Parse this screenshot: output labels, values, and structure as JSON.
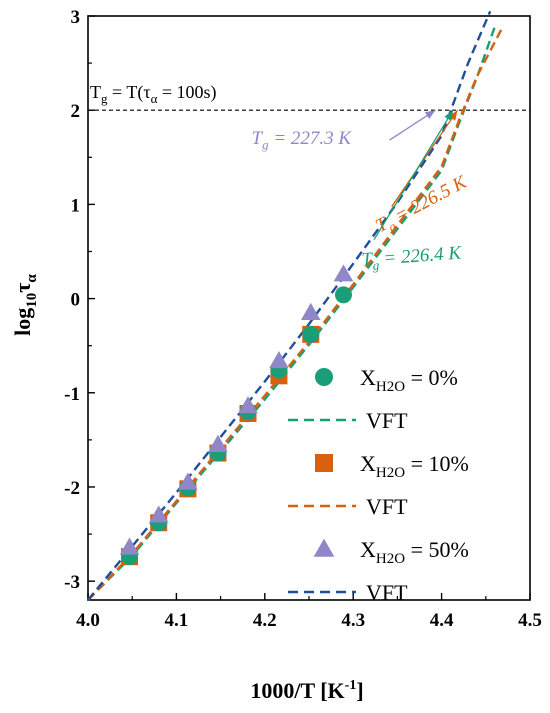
{
  "chart_data": {
    "type": "scatter",
    "xlabel": "1000/T [K",
    "xlabel_sup": "-1",
    "xlabel_tail": "]",
    "ylabel_main": "log",
    "ylabel_sub": "10",
    "ylabel_tau": "τ",
    "ylabel_tau_sub": "α",
    "xlim": [
      4.0,
      4.5
    ],
    "ylim": [
      -3.2,
      3.0
    ],
    "xticks": [
      "4.0",
      "4.1",
      "4.2",
      "4.3",
      "4.4",
      "4.5"
    ],
    "yticks": [
      "-3",
      "-2",
      "-1",
      "0",
      "1",
      "2",
      "3"
    ],
    "grid": false,
    "legend_position": "bottom-right",
    "hline": {
      "y": 2,
      "label_T": "T",
      "label_g": "g",
      "label_mid": " = T(τ",
      "label_alpha": "α",
      "label_tail": " = 100s)"
    },
    "series": [
      {
        "kind": "points",
        "marker": "circle",
        "color": "#1a9e77",
        "legend_x": "X",
        "legend_sub": "H2O",
        "legend_val": " = 0%",
        "x": [
          4.047,
          4.08,
          4.113,
          4.147,
          4.181,
          4.216,
          4.252,
          4.289
        ],
        "y": [
          -2.74,
          -2.38,
          -2.01,
          -1.64,
          -1.2,
          -0.76,
          -0.38,
          0.04
        ]
      },
      {
        "kind": "line",
        "color": "#1a9e77",
        "legend": "VFT",
        "x": [
          4.0,
          4.05,
          4.1,
          4.15,
          4.2,
          4.25,
          4.3,
          4.35,
          4.4,
          4.42,
          4.44,
          4.46
        ],
        "y": [
          -3.2,
          -2.73,
          -2.17,
          -1.62,
          -1.07,
          -0.49,
          0.12,
          0.74,
          1.36,
          1.87,
          2.35,
          2.88
        ]
      },
      {
        "kind": "points",
        "marker": "square",
        "color": "#d95f0e",
        "legend_x": "X",
        "legend_sub": "H2O",
        "legend_val": " = 10%",
        "x": [
          4.047,
          4.08,
          4.113,
          4.147,
          4.181,
          4.216,
          4.252
        ],
        "y": [
          -2.74,
          -2.38,
          -2.02,
          -1.64,
          -1.22,
          -0.82,
          -0.38
        ]
      },
      {
        "kind": "line",
        "color": "#d95f0e",
        "legend": "VFT",
        "x": [
          4.0,
          4.05,
          4.1,
          4.15,
          4.2,
          4.25,
          4.3,
          4.35,
          4.4,
          4.42,
          4.44,
          4.47
        ],
        "y": [
          -3.2,
          -2.71,
          -2.15,
          -1.59,
          -1.03,
          -0.46,
          0.15,
          0.78,
          1.4,
          1.9,
          2.36,
          2.9
        ]
      },
      {
        "kind": "points",
        "marker": "triangle",
        "color": "#8f87c8",
        "legend_x": "X",
        "legend_sub": "H2O",
        "legend_val": " = 50%",
        "x": [
          4.047,
          4.08,
          4.113,
          4.147,
          4.181,
          4.216,
          4.252,
          4.289
        ],
        "y": [
          -2.64,
          -2.3,
          -1.95,
          -1.55,
          -1.14,
          -0.66,
          -0.15,
          0.26
        ]
      },
      {
        "kind": "line",
        "color": "#1f4e9c",
        "legend": "VFT",
        "x": [
          4.0,
          4.05,
          4.1,
          4.15,
          4.2,
          4.25,
          4.3,
          4.35,
          4.4,
          4.43,
          4.455
        ],
        "y": [
          -3.2,
          -2.63,
          -2.06,
          -1.47,
          -0.88,
          -0.27,
          0.37,
          1.02,
          1.73,
          2.5,
          3.05
        ]
      }
    ],
    "annotations": [
      {
        "label_T": "T",
        "label_g": "g",
        "label_val": " = 227.3 K",
        "color": "#8f87c8",
        "text_x": 4.185,
        "text_y": 1.64,
        "point_x": 4.393,
        "point_y": 2.0
      },
      {
        "label_T": "T",
        "label_g": "g",
        "label_val": " = 226.5 K",
        "color": "#d95f0e",
        "text_x": 4.33,
        "text_y": 0.7,
        "point_x": 4.418,
        "point_y": 2.0
      },
      {
        "label_T": "T",
        "label_g": "g",
        "label_val": " = 226.4 K",
        "color": "#1a9e77",
        "text_x": 4.31,
        "text_y": 0.35,
        "point_x": 4.413,
        "point_y": 2.0
      }
    ]
  }
}
